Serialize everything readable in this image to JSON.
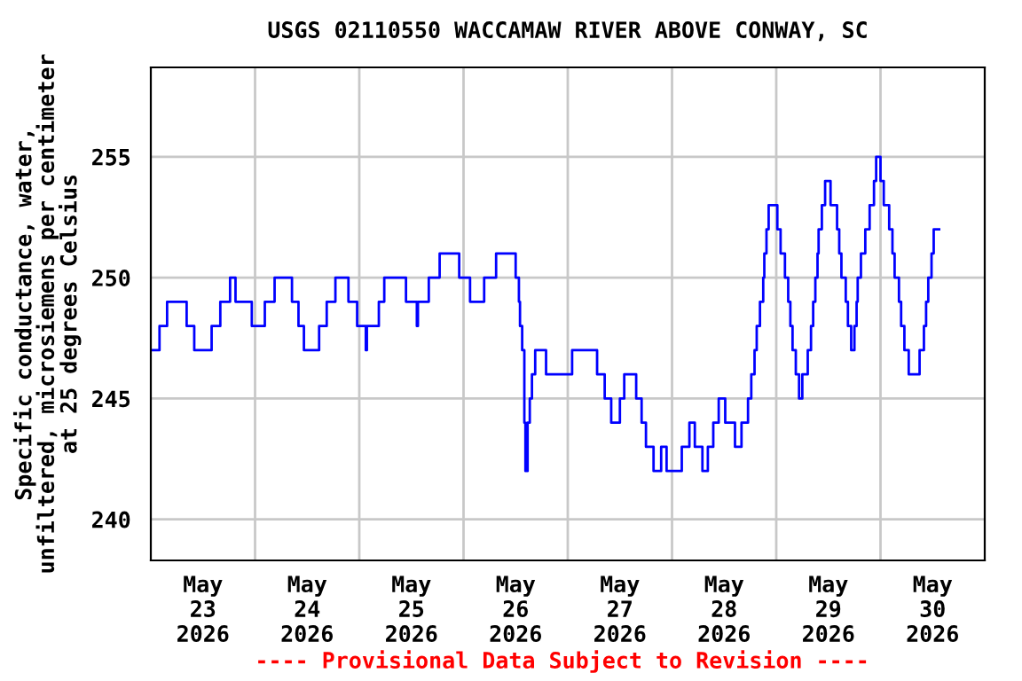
{
  "chart_data": {
    "type": "step",
    "title": "USGS 02110550 WACCAMAW RIVER ABOVE CONWAY, SC",
    "ylabel": "Specific conductance, water,\nunfiltered, microsiemens per centimeter\nat 25 degrees Celsius",
    "annotations": [
      "---- Provisional Data Subject to Revision ----"
    ],
    "xlim": [
      "2026-05-23T00:00",
      "2026-05-31T00:00"
    ],
    "xticks": [
      {
        "value": "2026-05-23T12:00",
        "label": "May\n23\n2026"
      },
      {
        "value": "2026-05-24T12:00",
        "label": "May\n24\n2026"
      },
      {
        "value": "2026-05-25T12:00",
        "label": "May\n25\n2026"
      },
      {
        "value": "2026-05-26T12:00",
        "label": "May\n26\n2026"
      },
      {
        "value": "2026-05-27T12:00",
        "label": "May\n27\n2026"
      },
      {
        "value": "2026-05-28T12:00",
        "label": "May\n28\n2026"
      },
      {
        "value": "2026-05-29T12:00",
        "label": "May\n29\n2026"
      },
      {
        "value": "2026-05-30T12:00",
        "label": "May\n30\n2026"
      },
      {
        "value": "2026-05-24T00:00",
        "label": null
      },
      {
        "value": "2026-05-25T00:00",
        "label": null
      },
      {
        "value": "2026-05-26T00:00",
        "label": null
      },
      {
        "value": "2026-05-27T00:00",
        "label": null
      },
      {
        "value": "2026-05-28T00:00",
        "label": null
      },
      {
        "value": "2026-05-29T00:00",
        "label": null
      },
      {
        "value": "2026-05-30T00:00",
        "label": null
      }
    ],
    "ylim": [
      238.3,
      258.7
    ],
    "yticks": [
      240,
      245,
      250,
      255
    ],
    "grid": true,
    "line_style": "solid",
    "marker": "none",
    "series": [
      {
        "color": "#0000ff",
        "x": [
          "2026-05-23T00:00",
          "2026-05-23T02:00",
          "2026-05-23T03:45",
          "2026-05-23T08:15",
          "2026-05-23T10:00",
          "2026-05-23T14:00",
          "2026-05-23T16:00",
          "2026-05-23T18:15",
          "2026-05-23T19:30",
          "2026-05-23T23:15",
          "2026-05-24T02:15",
          "2026-05-24T04:30",
          "2026-05-24T08:30",
          "2026-05-24T10:00",
          "2026-05-24T11:15",
          "2026-05-24T14:45",
          "2026-05-24T16:30",
          "2026-05-24T18:30",
          "2026-05-24T21:30",
          "2026-05-24T23:30",
          "2026-05-25T01:30",
          "2026-05-25T01:45",
          "2026-05-25T04:30",
          "2026-05-25T05:45",
          "2026-05-25T10:45",
          "2026-05-25T13:15",
          "2026-05-25T13:30",
          "2026-05-25T16:00",
          "2026-05-25T18:30",
          "2026-05-25T23:00",
          "2026-05-26T01:30",
          "2026-05-26T04:45",
          "2026-05-26T07:30",
          "2026-05-26T12:00",
          "2026-05-26T12:45",
          "2026-05-26T13:00",
          "2026-05-26T13:30",
          "2026-05-26T14:00",
          "2026-05-26T14:15",
          "2026-05-26T14:45",
          "2026-05-26T15:15",
          "2026-05-26T15:45",
          "2026-05-26T16:30",
          "2026-05-26T19:00",
          "2026-05-27T01:00",
          "2026-05-27T06:45",
          "2026-05-27T08:30",
          "2026-05-27T10:00",
          "2026-05-27T12:00",
          "2026-05-27T13:00",
          "2026-05-27T15:45",
          "2026-05-27T17:00",
          "2026-05-27T18:00",
          "2026-05-27T19:45",
          "2026-05-27T21:30",
          "2026-05-27T22:45",
          "2026-05-28T02:15",
          "2026-05-28T04:00",
          "2026-05-28T05:15",
          "2026-05-28T07:00",
          "2026-05-28T08:15",
          "2026-05-28T09:30",
          "2026-05-28T10:45",
          "2026-05-28T12:15",
          "2026-05-28T14:30",
          "2026-05-28T16:00",
          "2026-05-28T17:30",
          "2026-05-28T18:15",
          "2026-05-28T19:00",
          "2026-05-28T19:30",
          "2026-05-28T20:15",
          "2026-05-28T21:00",
          "2026-05-28T21:15",
          "2026-05-28T21:45",
          "2026-05-28T22:15",
          "2026-05-29T00:15",
          "2026-05-29T01:00",
          "2026-05-29T02:00",
          "2026-05-29T02:45",
          "2026-05-29T03:15",
          "2026-05-29T03:45",
          "2026-05-29T04:30",
          "2026-05-29T05:15",
          "2026-05-29T06:00",
          "2026-05-29T07:15",
          "2026-05-29T08:00",
          "2026-05-29T08:30",
          "2026-05-29T09:00",
          "2026-05-29T09:30",
          "2026-05-29T09:45",
          "2026-05-29T10:30",
          "2026-05-29T11:15",
          "2026-05-29T12:30",
          "2026-05-29T14:00",
          "2026-05-29T14:30",
          "2026-05-29T15:00",
          "2026-05-29T16:00",
          "2026-05-29T16:30",
          "2026-05-29T17:15",
          "2026-05-29T18:00",
          "2026-05-29T18:30",
          "2026-05-29T18:45",
          "2026-05-29T19:30",
          "2026-05-29T20:30",
          "2026-05-29T21:30",
          "2026-05-29T22:30",
          "2026-05-29T23:00",
          "2026-05-30T00:00",
          "2026-05-30T00:45",
          "2026-05-30T02:00",
          "2026-05-30T02:45",
          "2026-05-30T03:15",
          "2026-05-30T04:15",
          "2026-05-30T04:45",
          "2026-05-30T05:30",
          "2026-05-30T06:30",
          "2026-05-30T09:00",
          "2026-05-30T10:00",
          "2026-05-30T10:30",
          "2026-05-30T11:00",
          "2026-05-30T11:45",
          "2026-05-30T12:15",
          "2026-05-30T13:30"
        ],
        "values": [
          247,
          248,
          249,
          248,
          247,
          248,
          249,
          250,
          249,
          248,
          249,
          250,
          249,
          248,
          247,
          248,
          249,
          250,
          249,
          248,
          247,
          248,
          249,
          250,
          249,
          248,
          249,
          250,
          251,
          250,
          249,
          250,
          251,
          250,
          249,
          248,
          247,
          244,
          242,
          244,
          245,
          246,
          247,
          246,
          247,
          246,
          245,
          244,
          245,
          246,
          245,
          244,
          243,
          242,
          243,
          242,
          243,
          244,
          243,
          242,
          243,
          244,
          245,
          244,
          243,
          244,
          245,
          246,
          247,
          248,
          249,
          250,
          251,
          252,
          253,
          252,
          251,
          250,
          249,
          248,
          247,
          246,
          245,
          246,
          247,
          248,
          249,
          250,
          251,
          252,
          253,
          254,
          253,
          252,
          251,
          250,
          249,
          248,
          247,
          248,
          249,
          250,
          251,
          252,
          253,
          254,
          255,
          254,
          253,
          252,
          251,
          250,
          249,
          248,
          247,
          246,
          247,
          248,
          249,
          250,
          251,
          252,
          252
        ]
      }
    ]
  }
}
